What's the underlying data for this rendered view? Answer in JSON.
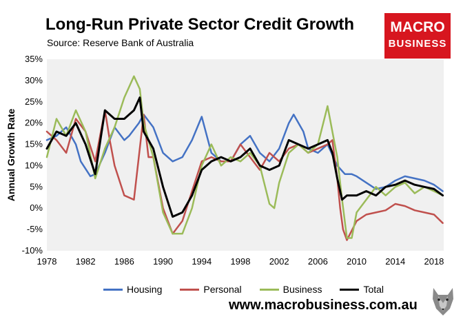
{
  "header": {
    "title": "Long-Run Private Sector Credit Growth",
    "source": "Source: Reserve Bank of Australia"
  },
  "logo": {
    "line1": "MACRO",
    "line2": "BUSINESS",
    "color": "#d7161f"
  },
  "footer": {
    "url": "www.macrobusiness.com.au"
  },
  "chart_data": {
    "type": "line",
    "title": "Long-Run Private Sector Credit Growth",
    "xlabel": "",
    "ylabel": "Annual Growth Rate",
    "xlim": [
      1978,
      2019
    ],
    "ylim": [
      -10,
      35
    ],
    "yticks": [
      -10,
      -5,
      0,
      5,
      10,
      15,
      20,
      25,
      30,
      35
    ],
    "ytick_labels": [
      "-10%",
      "-5%",
      "0%",
      "5%",
      "10%",
      "15%",
      "20%",
      "25%",
      "30%",
      "35%"
    ],
    "xticks": [
      1978,
      1982,
      1986,
      1990,
      1994,
      1998,
      2002,
      2006,
      2010,
      2014,
      2018
    ],
    "xtick_labels": [
      "1978",
      "1982",
      "1986",
      "1990",
      "1994",
      "1998",
      "2002",
      "2006",
      "2010",
      "2014",
      "2018"
    ],
    "grid": false,
    "legend_position": "bottom",
    "series": [
      {
        "name": "Housing",
        "color": "#4472c4",
        "x": [
          1978,
          1979,
          1980,
          1981,
          1981.5,
          1982.5,
          1983,
          1984,
          1985,
          1986,
          1986.5,
          1987.5,
          1988,
          1989,
          1990,
          1991,
          1992,
          1993,
          1994,
          1995,
          1996,
          1997,
          1998,
          1999,
          2000,
          2001,
          2002,
          2003,
          2003.5,
          2004.5,
          2005,
          2006,
          2007,
          2008,
          2008.8,
          2009.5,
          2010,
          2011,
          2012,
          2013,
          2014,
          2015,
          2016,
          2017,
          2018,
          2018.9
        ],
        "y": [
          16,
          17,
          19,
          15,
          11,
          7.5,
          8,
          13,
          19,
          16,
          17,
          20,
          22,
          19,
          13,
          11,
          12,
          16,
          21.5,
          13,
          11,
          11,
          15,
          17,
          13,
          11,
          14,
          20,
          22,
          18,
          14,
          13,
          15,
          10,
          8,
          8,
          7.5,
          6,
          4.5,
          5,
          6.5,
          7.5,
          7,
          6.5,
          5.5,
          4
        ]
      },
      {
        "name": "Personal",
        "color": "#c0504d",
        "x": [
          1978,
          1979,
          1980,
          1981,
          1982,
          1983,
          1984,
          1984.5,
          1985,
          1986,
          1987,
          1988,
          1988.5,
          1989,
          1990,
          1991,
          1992,
          1993,
          1994,
          1995,
          1996,
          1997,
          1998,
          1999,
          2000,
          2001,
          2002,
          2003,
          2004,
          2005,
          2006,
          2007,
          2007.5,
          2008,
          2008.3,
          2008.6,
          2009,
          2010,
          2011,
          2012,
          2013,
          2014,
          2015,
          2016,
          2017,
          2018,
          2018.9
        ],
        "y": [
          18,
          16,
          13,
          21,
          18,
          11,
          23,
          16,
          10,
          3,
          2,
          22,
          12,
          12,
          0,
          -6,
          -3,
          4,
          11,
          12,
          11,
          11,
          15,
          12,
          9,
          13,
          11,
          14,
          15,
          13,
          14,
          15,
          16,
          7,
          0,
          -5,
          -7.5,
          -3,
          -1.5,
          -1,
          -0.5,
          1,
          0.5,
          -0.5,
          -1,
          -1.5,
          -3.5
        ]
      },
      {
        "name": "Business",
        "color": "#9bbb59",
        "x": [
          1978,
          1979,
          1980,
          1981,
          1982,
          1983,
          1984,
          1985,
          1986,
          1987,
          1987.6,
          1988,
          1989,
          1990,
          1991,
          1992,
          1993,
          1994,
          1995,
          1996,
          1997,
          1998,
          1999,
          2000,
          2001,
          2001.5,
          2002,
          2003,
          2004,
          2005,
          2006,
          2007,
          2007.5,
          2008,
          2008.5,
          2009,
          2009.5,
          2010,
          2011,
          2012,
          2013,
          2014,
          2015,
          2016,
          2017,
          2018,
          2018.9
        ],
        "y": [
          12,
          21,
          17,
          23,
          18,
          7,
          14,
          19,
          26,
          31,
          28,
          20,
          12,
          -1,
          -6,
          -6,
          0,
          10,
          15,
          10,
          12,
          11,
          13,
          10,
          1,
          0,
          6,
          13,
          15,
          13,
          15,
          24,
          18,
          12,
          2,
          -7,
          -7,
          -1,
          2,
          5,
          3,
          5,
          6,
          3.5,
          5,
          4,
          3
        ]
      },
      {
        "name": "Total",
        "color": "#000000",
        "x": [
          1978,
          1979,
          1980,
          1981,
          1982,
          1983,
          1984,
          1985,
          1986,
          1987,
          1987.6,
          1988,
          1989,
          1990,
          1991,
          1992,
          1993,
          1994,
          1995,
          1996,
          1997,
          1998,
          1999,
          2000,
          2001,
          2002,
          2003,
          2004,
          2005,
          2006,
          2007,
          2007.5,
          2008,
          2008.5,
          2009,
          2010,
          2011,
          2012,
          2013,
          2014,
          2015,
          2016,
          2017,
          2018,
          2018.9
        ],
        "y": [
          14,
          18,
          17,
          20,
          15,
          8,
          23,
          21,
          21,
          23,
          26,
          18,
          14,
          5,
          -2,
          -1,
          3,
          9,
          11,
          12,
          11,
          12,
          14,
          10,
          9,
          10,
          16,
          15,
          14,
          15,
          16,
          13,
          7,
          2,
          3,
          3,
          4,
          3,
          5,
          5.5,
          6.5,
          5.5,
          5,
          4.5,
          3
        ]
      }
    ]
  }
}
